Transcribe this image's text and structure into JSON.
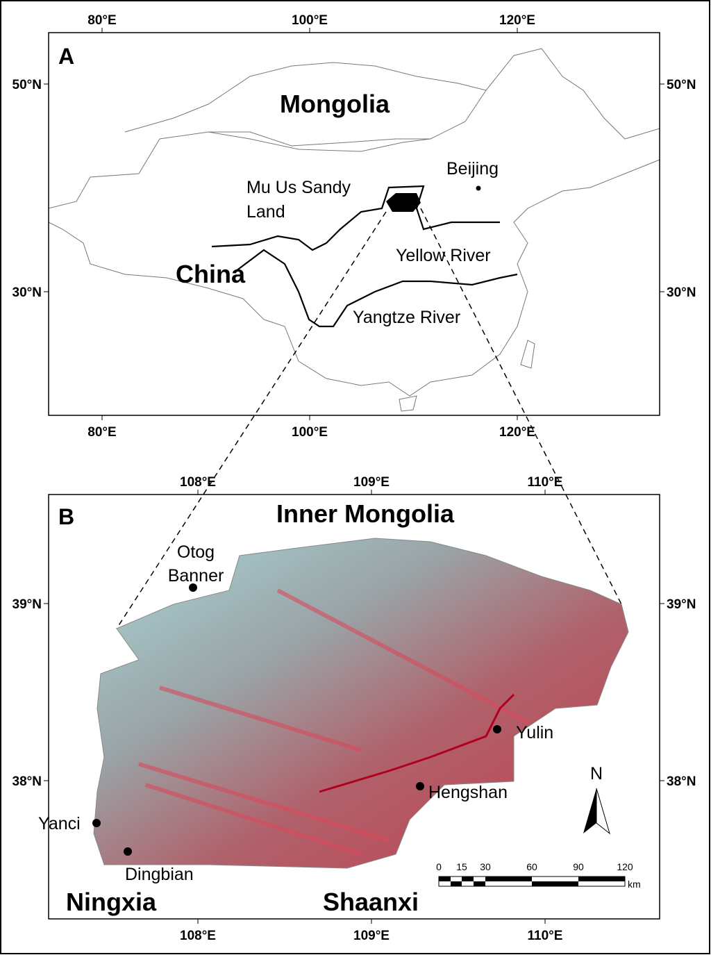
{
  "panel_a": {
    "label": "A",
    "lon_ticks": [
      "80°E",
      "100°E",
      "120°E"
    ],
    "lat_ticks": [
      "50°N",
      "30°N"
    ],
    "regions": [
      "Mongolia",
      "China"
    ],
    "places": [
      "Beijing"
    ],
    "study_area": [
      "Mu Us Sandy",
      "Land"
    ],
    "rivers": [
      "Yellow River",
      "Yangtze River"
    ]
  },
  "panel_b": {
    "label": "B",
    "lon_ticks": [
      "108°E",
      "109°E",
      "110°E"
    ],
    "lat_ticks": [
      "39°N",
      "38°N"
    ],
    "regions": [
      "Inner Mongolia",
      "Ningxia",
      "Shaanxi"
    ],
    "otog": [
      "Otog",
      "Banner"
    ],
    "places": [
      "Yulin",
      "Hengshan",
      "Yanci",
      "Dingbian"
    ],
    "north": "N",
    "scale": [
      "0",
      "15",
      "30",
      "60",
      "90",
      "120"
    ],
    "scale_unit": "km"
  }
}
